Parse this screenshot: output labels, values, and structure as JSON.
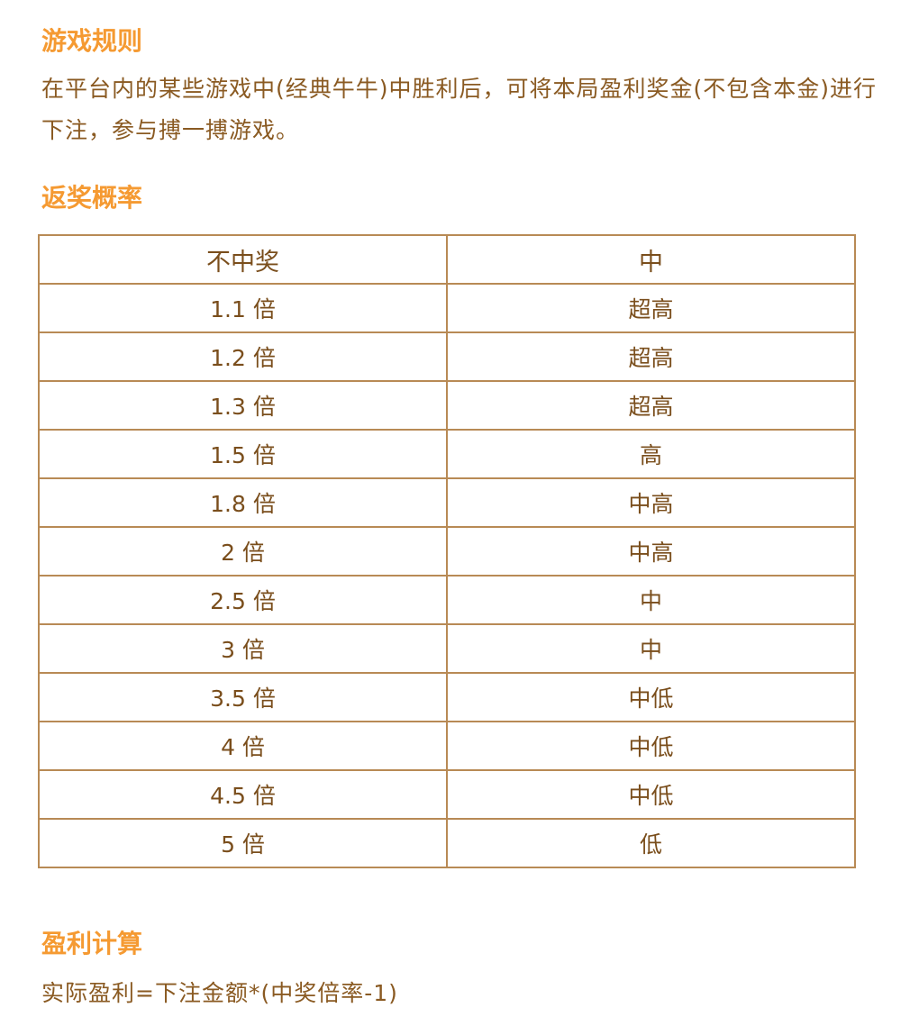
{
  "rules": {
    "title": "游戏规则",
    "text": "在平台内的某些游戏中(经典牛牛)中胜利后，可将本局盈利奖金(不包含本金)进行下注，参与搏一搏游戏。"
  },
  "odds": {
    "title": "返奖概率",
    "headers": [
      "不中奖",
      "中"
    ],
    "rows": [
      [
        "1.1 倍",
        "超高"
      ],
      [
        "1.2 倍",
        "超高"
      ],
      [
        "1.3 倍",
        "超高"
      ],
      [
        "1.5 倍",
        "高"
      ],
      [
        "1.8 倍",
        "中高"
      ],
      [
        "2 倍",
        "中高"
      ],
      [
        "2.5 倍",
        "中"
      ],
      [
        "3 倍",
        "中"
      ],
      [
        "3.5 倍",
        "中低"
      ],
      [
        "4 倍",
        "中低"
      ],
      [
        "4.5 倍",
        "中低"
      ],
      [
        "5 倍",
        "低"
      ]
    ]
  },
  "profit": {
    "title": "盈利计算",
    "formula": "实际盈利=下注金额*(中奖倍率-1)"
  },
  "colors": {
    "heading": "#f59a32",
    "text": "#8a5a22",
    "border": "#b88a55"
  }
}
